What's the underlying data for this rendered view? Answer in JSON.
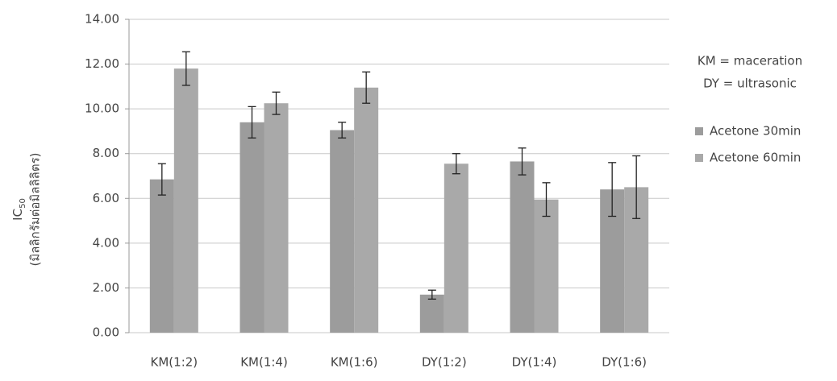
{
  "chart_data": {
    "type": "bar",
    "y_label": "IC",
    "y_label_sub": "50",
    "y_label_2": "(มิลลิกรัมต่อมิลลิลิตร)",
    "annotations": [
      "KM = maceration",
      "DY = ultrasonic"
    ],
    "categories": [
      "KM(1:2)",
      "KM(1:4)",
      "KM(1:6)",
      "DY(1:2)",
      "DY(1:4)",
      "DY(1:6)"
    ],
    "series": [
      {
        "name": "Acetone 30min",
        "color": "#9c9c9c",
        "values": [
          6.85,
          9.4,
          9.05,
          1.7,
          7.65,
          6.4
        ],
        "errors": [
          0.7,
          0.7,
          0.35,
          0.2,
          0.6,
          1.2
        ]
      },
      {
        "name": "Acetone 60min",
        "color": "#a9a9a9",
        "values": [
          11.8,
          10.25,
          10.95,
          7.55,
          5.95,
          6.5
        ],
        "errors": [
          0.75,
          0.5,
          0.7,
          0.45,
          0.75,
          1.4
        ]
      }
    ],
    "ylim": [
      0,
      14
    ],
    "yticks": [
      {
        "value": 0,
        "label": "0.00"
      },
      {
        "value": 2,
        "label": "2.00"
      },
      {
        "value": 4,
        "label": "4.00"
      },
      {
        "value": 6,
        "label": "6.00"
      },
      {
        "value": 8,
        "label": "8.00"
      },
      {
        "value": 10,
        "label": "10.00"
      },
      {
        "value": 12,
        "label": "12.00"
      },
      {
        "value": 14,
        "label": "14.00"
      }
    ],
    "grid": true
  }
}
